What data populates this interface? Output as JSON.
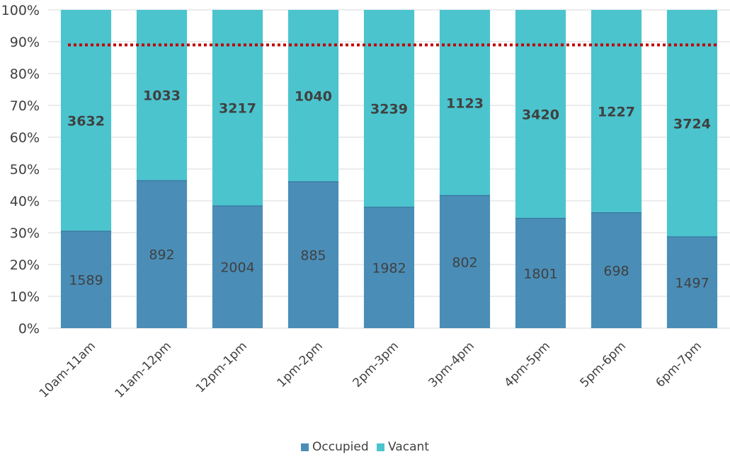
{
  "chart_data": {
    "type": "bar",
    "stacked": "percent",
    "categories": [
      "10am-11am",
      "11am-12pm",
      "12pm-1pm",
      "1pm-2pm",
      "2pm-3pm",
      "3pm-4pm",
      "4pm-5pm",
      "5pm-6pm",
      "6pm-7pm"
    ],
    "series": [
      {
        "name": "Occupied",
        "color": "#4a8eb8",
        "values": [
          1589,
          892,
          2004,
          885,
          1982,
          802,
          1801,
          698,
          1497
        ]
      },
      {
        "name": "Vacant",
        "color": "#4bc4ce",
        "values": [
          3632,
          1033,
          3217,
          1040,
          3239,
          1123,
          3420,
          1227,
          3724
        ]
      }
    ],
    "y_ticks": [
      "0%",
      "10%",
      "20%",
      "30%",
      "40%",
      "50%",
      "60%",
      "70%",
      "80%",
      "90%",
      "100%"
    ],
    "ylim": [
      0,
      100
    ],
    "reference_line": {
      "value": 89,
      "style": "dotted",
      "color": "#c00000"
    },
    "grid": true,
    "legend_position": "bottom"
  }
}
